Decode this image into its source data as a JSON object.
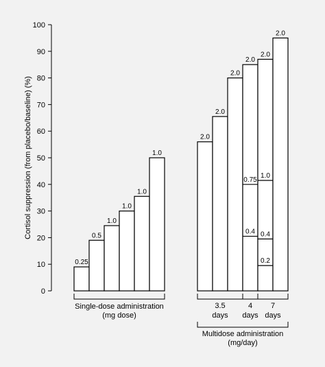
{
  "chart_data": {
    "type": "bar",
    "ylabel": "Cortisol suppression (from placebo/baseline) (%)",
    "ylim": [
      0,
      100
    ],
    "yticks": [
      0,
      10,
      20,
      30,
      40,
      50,
      60,
      70,
      80,
      90,
      100
    ],
    "grid": false,
    "groups": [
      {
        "label_lines": [
          "Single-dose administration",
          "(mg dose)"
        ],
        "bars": [
          {
            "value": 9,
            "label": "0.25"
          },
          {
            "value": 19,
            "label": "0.5"
          },
          {
            "value": 24.5,
            "label": "1.0"
          },
          {
            "value": 30,
            "label": "1.0"
          },
          {
            "value": 35.5,
            "label": "1.0"
          },
          {
            "value": 50,
            "label": "1.0"
          }
        ]
      },
      {
        "label_lines": [
          "Multidose administration",
          "(mg/day)"
        ],
        "bars": [
          {
            "value": 56,
            "label": "2.0"
          },
          {
            "value": 65.5,
            "label": "2.0"
          },
          {
            "value": 80,
            "label": "2.0"
          },
          {
            "value": 85,
            "label": "2.0",
            "segments": [
              {
                "value": 20.5,
                "label": "0.4"
              },
              {
                "value": 40,
                "label": "0.75"
              }
            ]
          },
          {
            "value": 87,
            "label": "2.0",
            "segments": [
              {
                "value": 9.5,
                "label": "0.2"
              },
              {
                "value": 19.5,
                "label": "0.4"
              },
              {
                "value": 41.5,
                "label": "1.0"
              }
            ]
          },
          {
            "value": 95,
            "label": "2.0"
          }
        ],
        "subgroups": [
          {
            "label_lines": [
              "3.5",
              "days"
            ],
            "bars": [
              0,
              1,
              2
            ]
          },
          {
            "label_lines": [
              "4",
              "days"
            ],
            "bars": [
              3
            ]
          },
          {
            "label_lines": [
              "7",
              "days"
            ],
            "bars": [
              4,
              5
            ]
          }
        ]
      }
    ]
  }
}
